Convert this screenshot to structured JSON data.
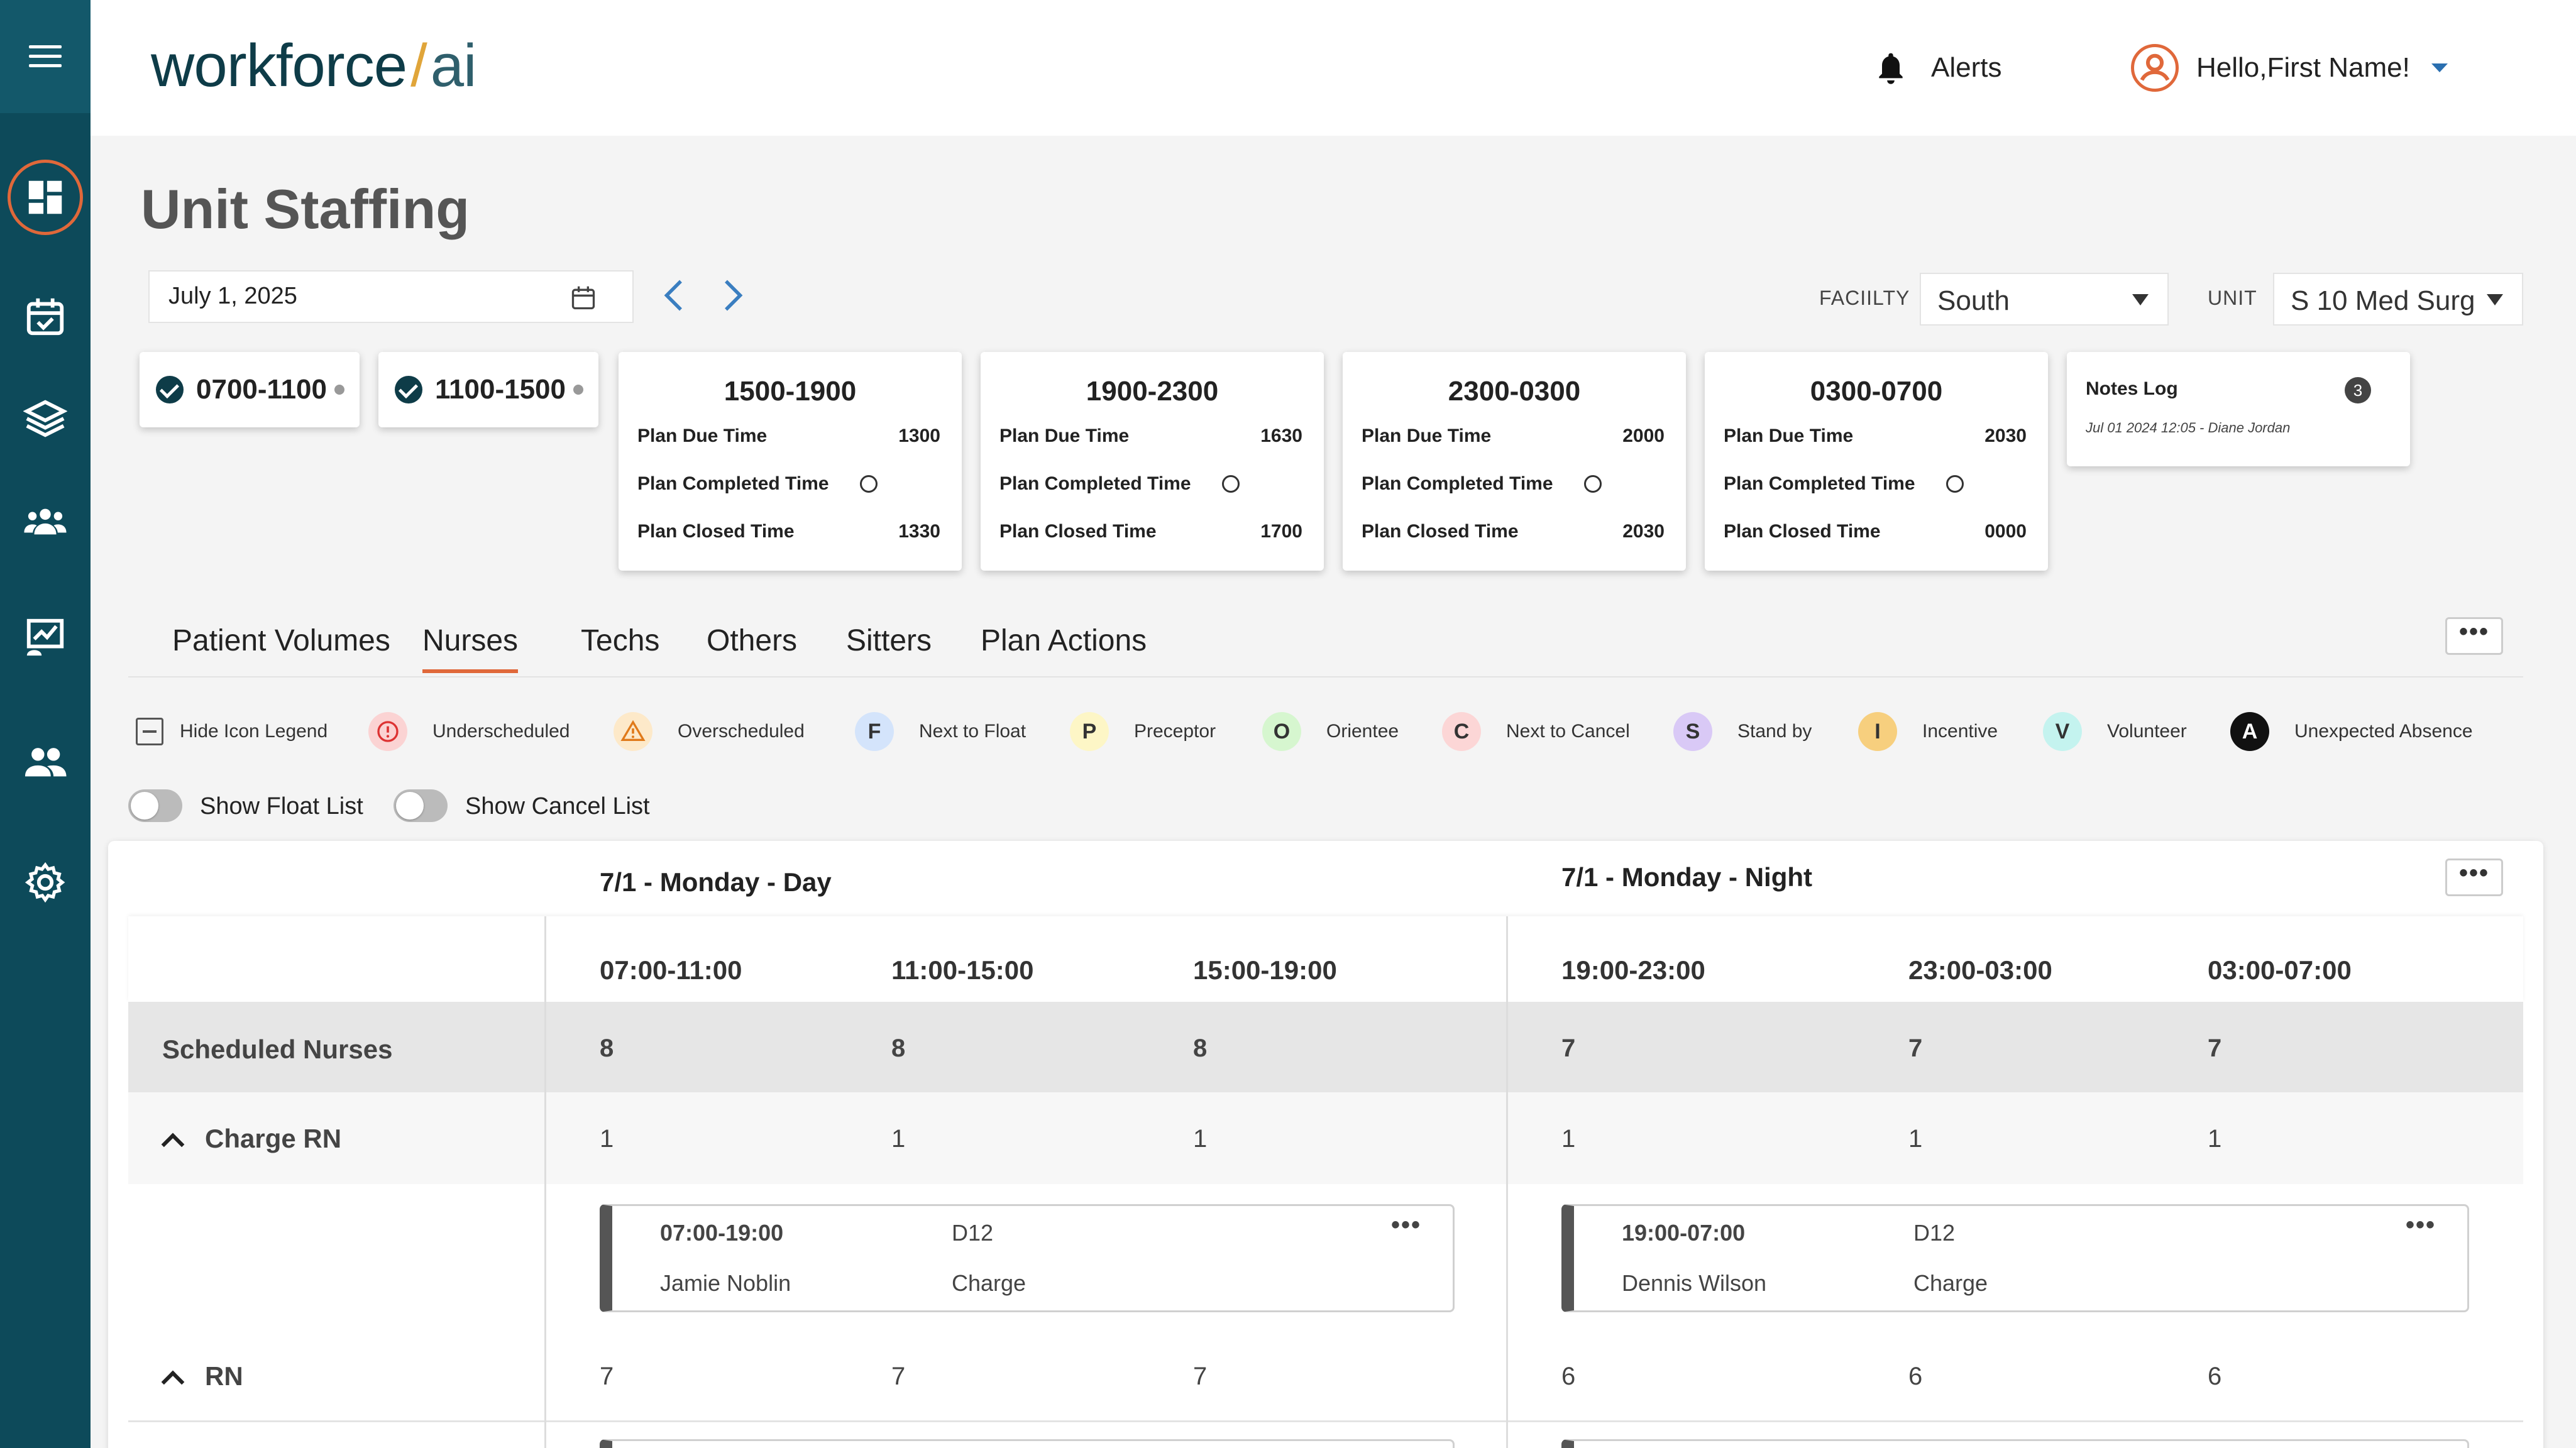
{
  "header": {
    "logo_main": "workforce",
    "logo_slash": "/",
    "logo_ai": "ai",
    "alerts_label": "Alerts",
    "greeting": "Hello,First Name!"
  },
  "page": {
    "title": "Unit Staffing"
  },
  "filters": {
    "date": "July 1, 2025",
    "facility_label": "FACIILTY",
    "facility_value": "South",
    "unit_label": "UNIT",
    "unit_value": "S 10 Med Surg"
  },
  "shift_chips": [
    {
      "label": "0700-1100"
    },
    {
      "label": "1100-1500"
    }
  ],
  "plan_cards": [
    {
      "title": "1500-1900",
      "due_label": "Plan Due Time",
      "due": "1300",
      "completed_label": "Plan Completed Time",
      "closed_label": "Plan Closed Time",
      "closed": "1330"
    },
    {
      "title": "1900-2300",
      "due_label": "Plan Due Time",
      "due": "1630",
      "completed_label": "Plan Completed Time",
      "closed_label": "Plan Closed Time",
      "closed": "1700"
    },
    {
      "title": "2300-0300",
      "due_label": "Plan Due Time",
      "due": "2000",
      "completed_label": "Plan Completed Time",
      "closed_label": "Plan Closed Time",
      "closed": "2030"
    },
    {
      "title": "0300-0700",
      "due_label": "Plan Due Time",
      "due": "2030",
      "completed_label": "Plan Completed Time",
      "closed_label": "Plan Closed Time",
      "closed": "0000"
    }
  ],
  "notes": {
    "title": "Notes Log",
    "count": "3",
    "entry": "Jul 01 2024 12:05 - Diane Jordan"
  },
  "tabs": [
    "Patient Volumes",
    "Nurses",
    "Techs",
    "Others",
    "Sitters",
    "Plan Actions"
  ],
  "legend": {
    "hide_label": "Hide Icon Legend",
    "items": [
      {
        "icon": "",
        "label": "Underscheduled",
        "bg": "#fbd3d3",
        "fg": "#d33"
      },
      {
        "icon": "",
        "label": "Overscheduled",
        "bg": "#fde9c9",
        "fg": "#e07a1a"
      },
      {
        "icon": "F",
        "label": "Next to Float",
        "bg": "#d4e4fb",
        "fg": "#222"
      },
      {
        "icon": "P",
        "label": "Preceptor",
        "bg": "#fdf6c6",
        "fg": "#222"
      },
      {
        "icon": "O",
        "label": "Orientee",
        "bg": "#d6f6cf",
        "fg": "#222"
      },
      {
        "icon": "C",
        "label": "Next to Cancel",
        "bg": "#fcd6d6",
        "fg": "#222"
      },
      {
        "icon": "S",
        "label": "Stand by",
        "bg": "#d9c9f6",
        "fg": "#222"
      },
      {
        "icon": "I",
        "label": "Incentive",
        "bg": "#f7cf7e",
        "fg": "#222"
      },
      {
        "icon": "V",
        "label": "Volunteer",
        "bg": "#c4f3ef",
        "fg": "#222"
      },
      {
        "icon": "A",
        "label": "Unexpected Absence",
        "bg": "#111111",
        "fg": "#fff"
      }
    ]
  },
  "toggles": {
    "float": "Show Float List",
    "cancel": "Show Cancel List"
  },
  "grid": {
    "day_title": "7/1 - Monday - Day",
    "night_title": "7/1 - Monday - Night",
    "columns": [
      "07:00-11:00",
      "11:00-15:00",
      "15:00-19:00",
      "19:00-23:00",
      "23:00-03:00",
      "03:00-07:00"
    ],
    "scheduled": {
      "label": "Scheduled Nurses",
      "values": [
        "8",
        "8",
        "8",
        "7",
        "7",
        "7"
      ]
    },
    "charge": {
      "label": "Charge RN",
      "values": [
        "1",
        "1",
        "1",
        "1",
        "1",
        "1"
      ]
    },
    "rn": {
      "label": "RN",
      "values": [
        "7",
        "7",
        "7",
        "6",
        "6",
        "6"
      ]
    },
    "assignments": [
      {
        "time": "07:00-19:00",
        "unit": "D12",
        "name": "Jamie Noblin",
        "role": "Charge"
      },
      {
        "time": "19:00-07:00",
        "unit": "D12",
        "name": "Dennis Wilson",
        "role": "Charge"
      }
    ]
  }
}
